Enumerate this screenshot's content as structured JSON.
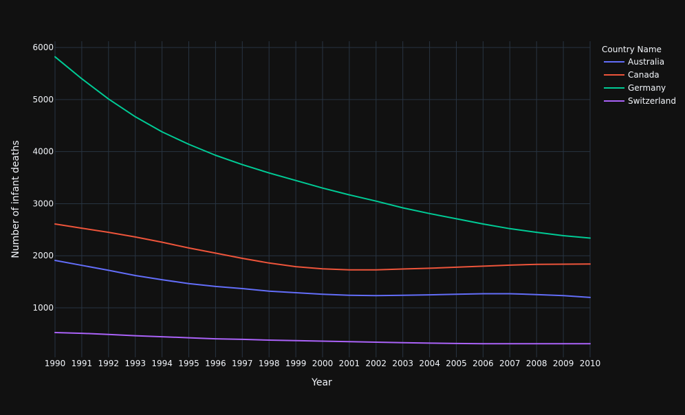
{
  "colors": {
    "background": "#111111",
    "grid": "#283442",
    "text": "#f2f5fa"
  },
  "chart_data": {
    "type": "line",
    "title": "",
    "xlabel": "Year",
    "ylabel": "Number of infant deaths",
    "x": [
      1990,
      1991,
      1992,
      1993,
      1994,
      1995,
      1996,
      1997,
      1998,
      1999,
      2000,
      2001,
      2002,
      2003,
      2004,
      2005,
      2006,
      2007,
      2008,
      2009,
      2010
    ],
    "xlim": [
      1990,
      2010
    ],
    "ylim": [
      50,
      6120
    ],
    "x_ticks": [
      "1990",
      "1991",
      "1992",
      "1993",
      "1994",
      "1995",
      "1996",
      "1997",
      "1998",
      "1999",
      "2000",
      "2001",
      "2002",
      "2003",
      "2004",
      "2005",
      "2006",
      "2007",
      "2008",
      "2009",
      "2010"
    ],
    "y_ticks": [
      1000,
      2000,
      3000,
      4000,
      5000,
      6000
    ],
    "y_tick_labels": [
      "1000",
      "2000",
      "3000",
      "4000",
      "5000",
      "6000"
    ],
    "grid": true,
    "legend": {
      "title": "Country Name",
      "position": "top-right"
    },
    "series": [
      {
        "name": "Australia",
        "color": "#636efa",
        "values": [
          1910,
          1815,
          1720,
          1620,
          1540,
          1465,
          1410,
          1370,
          1320,
          1290,
          1260,
          1240,
          1235,
          1240,
          1250,
          1260,
          1270,
          1270,
          1255,
          1235,
          1200
        ]
      },
      {
        "name": "Canada",
        "color": "#ef553b",
        "values": [
          2610,
          2530,
          2450,
          2360,
          2260,
          2150,
          2050,
          1950,
          1860,
          1790,
          1750,
          1730,
          1730,
          1745,
          1760,
          1780,
          1800,
          1820,
          1835,
          1838,
          1840
        ]
      },
      {
        "name": "Germany",
        "color": "#00cc96",
        "values": [
          5820,
          5400,
          5010,
          4670,
          4380,
          4140,
          3930,
          3750,
          3590,
          3445,
          3300,
          3170,
          3050,
          2920,
          2810,
          2710,
          2610,
          2520,
          2450,
          2385,
          2340
        ]
      },
      {
        "name": "Switzerland",
        "color": "#ab63fa",
        "values": [
          525,
          510,
          490,
          465,
          445,
          425,
          405,
          395,
          380,
          370,
          360,
          350,
          340,
          330,
          322,
          315,
          310,
          310,
          310,
          310,
          310
        ]
      }
    ]
  }
}
